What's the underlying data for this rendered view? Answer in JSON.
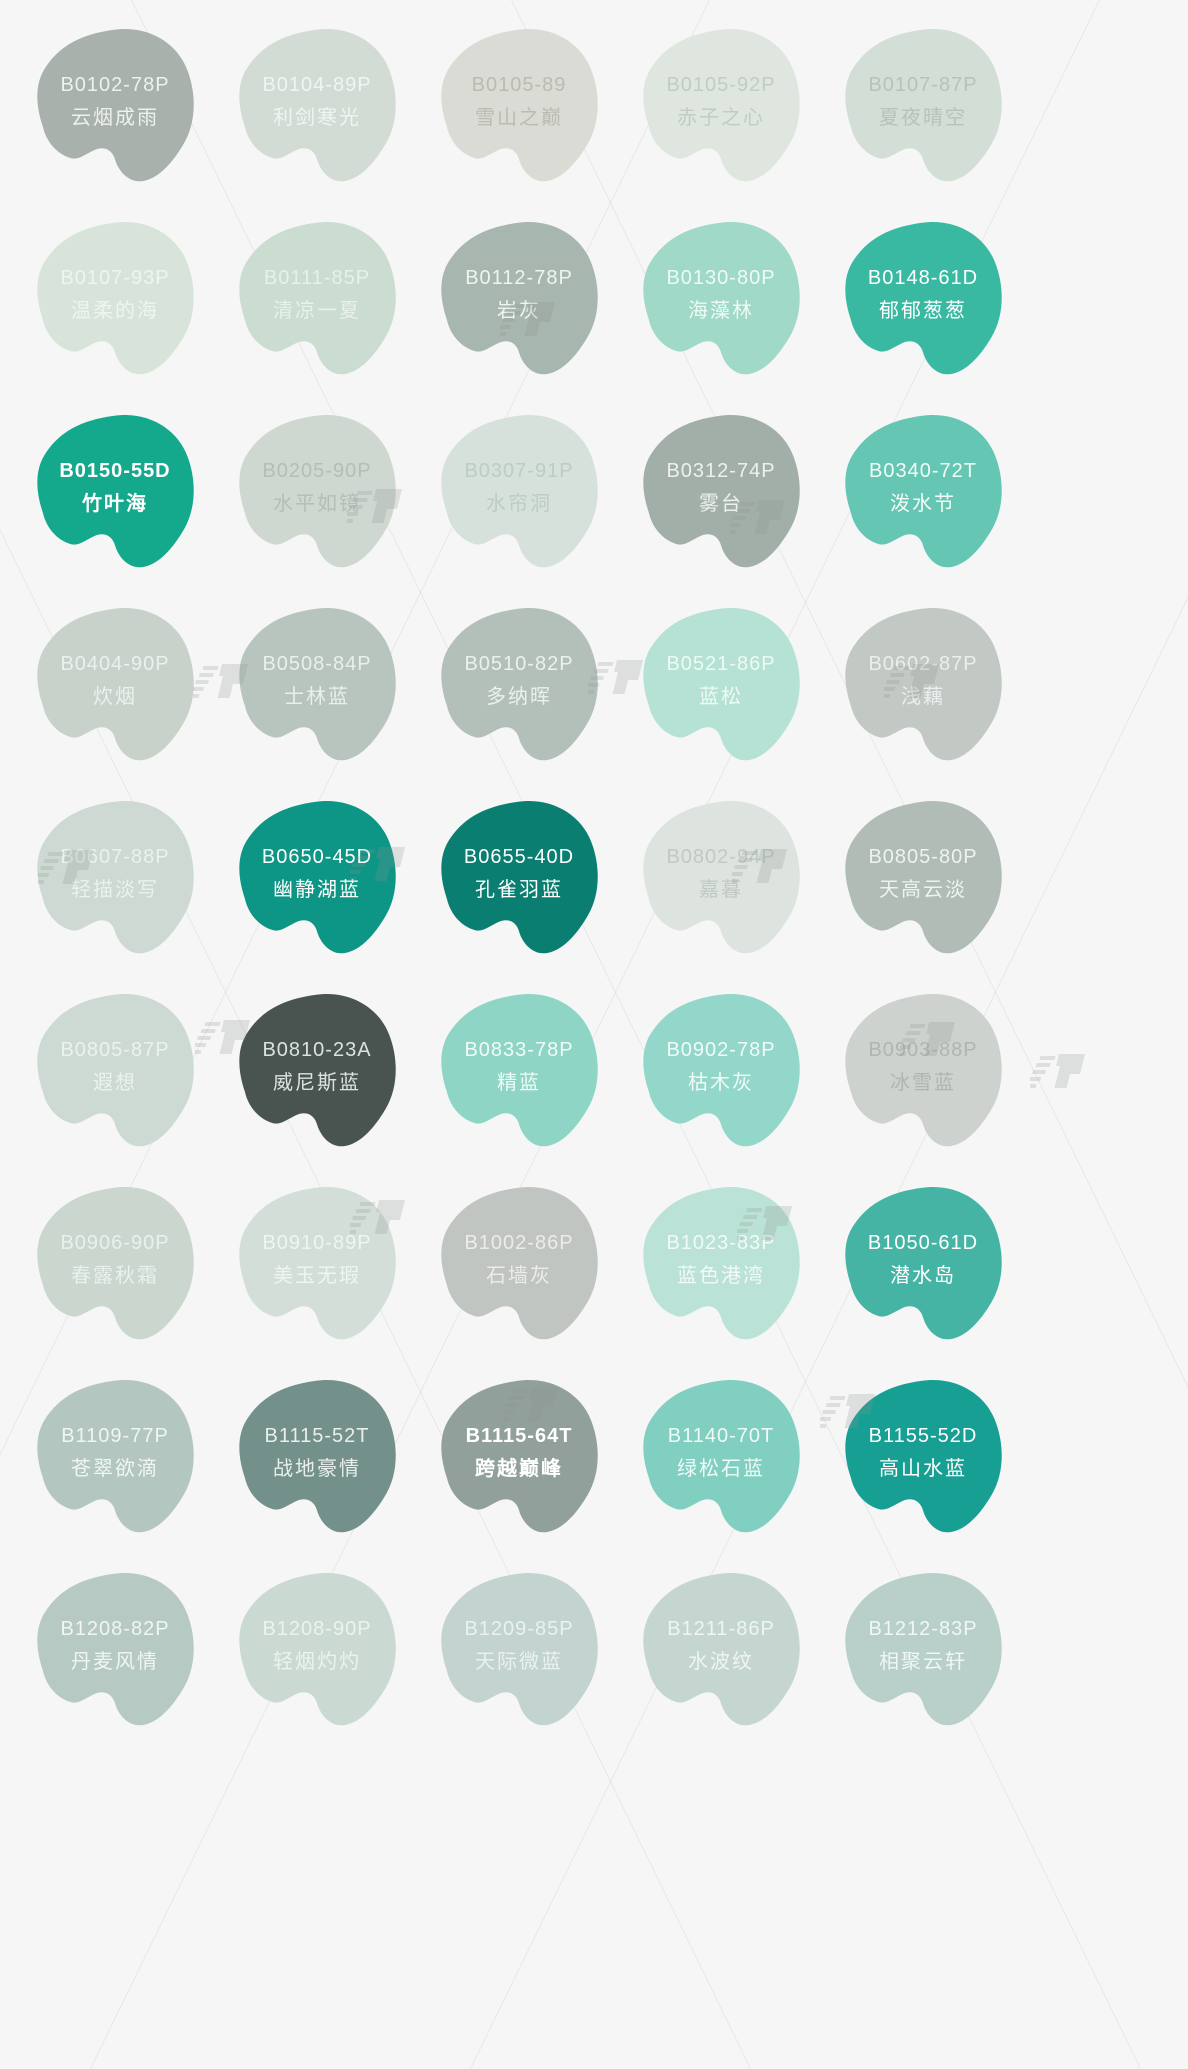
{
  "page": {
    "background": "#f5f6f5",
    "watermark_icon": "brand-watermark",
    "accent_teal": "#14a98c",
    "accent_dark": "#495450"
  },
  "swatches": [
    {
      "code": "B0102-78P",
      "name": "云烟成雨",
      "color": "#a8b1ac",
      "text_color": "#eef1ef",
      "bold": false
    },
    {
      "code": "B0104-89P",
      "name": "利剑寒光",
      "color": "#d3dbd5",
      "text_color": "#f0f5f1",
      "bold": false
    },
    {
      "code": "B0105-89",
      "name": "雪山之巅",
      "color": "#d9dbd4",
      "text_color": "#babcb4",
      "bold": false
    },
    {
      "code": "B0105-92P",
      "name": "赤子之心",
      "color": "#dee6df",
      "text_color": "#c2ccc3",
      "bold": false
    },
    {
      "code": "B0107-87P",
      "name": "夏夜晴空",
      "color": "#d2ded6",
      "text_color": "#b5c3ba",
      "bold": false
    },
    {
      "code": "B0107-93P",
      "name": "温柔的海",
      "color": "#d8e4da",
      "text_color": "#eef5f0",
      "bold": false
    },
    {
      "code": "B0111-85P",
      "name": "清凉一夏",
      "color": "#cbdcd1",
      "text_color": "#e7f1eb",
      "bold": false
    },
    {
      "code": "B0112-78P",
      "name": "岩灰",
      "color": "#a7b6af",
      "text_color": "#eff4f1",
      "bold": false
    },
    {
      "code": "B0130-80P",
      "name": "海藻林",
      "color": "#a0d9c8",
      "text_color": "#eefaf5",
      "bold": false
    },
    {
      "code": "B0148-61D",
      "name": "郁郁葱葱",
      "color": "#3ab9a2",
      "text_color": "#ffffff",
      "bold": false
    },
    {
      "code": "B0150-55D",
      "name": "竹叶海",
      "color": "#14a98c",
      "text_color": "#ffffff",
      "bold": true
    },
    {
      "code": "B0205-90P",
      "name": "水平如镜",
      "color": "#cfd7d1",
      "text_color": "#b4beb6",
      "bold": false
    },
    {
      "code": "B0307-91P",
      "name": "水帘洞",
      "color": "#d5e1da",
      "text_color": "#bccdc3",
      "bold": false
    },
    {
      "code": "B0312-74P",
      "name": "雾台",
      "color": "#a2afa8",
      "text_color": "#edf1ee",
      "bold": false
    },
    {
      "code": "B0340-72T",
      "name": "泼水节",
      "color": "#65c6b4",
      "text_color": "#f3fcf9",
      "bold": false
    },
    {
      "code": "B0404-90P",
      "name": "炊烟",
      "color": "#c8d2cb",
      "text_color": "#ebf1ec",
      "bold": false
    },
    {
      "code": "B0508-84P",
      "name": "士林蓝",
      "color": "#b7c5be",
      "text_color": "#e9f0ec",
      "bold": false
    },
    {
      "code": "B0510-82P",
      "name": "多纳晖",
      "color": "#b3c0b9",
      "text_color": "#ebf1ed",
      "bold": false
    },
    {
      "code": "B0521-86P",
      "name": "蓝松",
      "color": "#b6e1d5",
      "text_color": "#effaf5",
      "bold": false
    },
    {
      "code": "B0602-87P",
      "name": "浅藕",
      "color": "#c2c8c4",
      "text_color": "#ebeeec",
      "bold": false
    },
    {
      "code": "B0607-88P",
      "name": "轻描淡写",
      "color": "#cdd9d2",
      "text_color": "#eaf2ed",
      "bold": false
    },
    {
      "code": "B0650-45D",
      "name": "幽静湖蓝",
      "color": "#0d9585",
      "text_color": "#ffffff",
      "bold": false
    },
    {
      "code": "B0655-40D",
      "name": "孔雀羽蓝",
      "color": "#0a7e71",
      "text_color": "#ffffff",
      "bold": false
    },
    {
      "code": "B0802-94P",
      "name": "嘉暮",
      "color": "#dde3de",
      "text_color": "#c1c9c2",
      "bold": false
    },
    {
      "code": "B0805-80P",
      "name": "天高云淡",
      "color": "#b0bcb5",
      "text_color": "#eef3ef",
      "bold": false
    },
    {
      "code": "B0805-87P",
      "name": "遐想",
      "color": "#cdd9d3",
      "text_color": "#ecf3ee",
      "bold": false
    },
    {
      "code": "B0810-23A",
      "name": "威尼斯蓝",
      "color": "#495450",
      "text_color": "#dde2df",
      "bold": false
    },
    {
      "code": "B0833-78P",
      "name": "精蓝",
      "color": "#8fd5c6",
      "text_color": "#f1fbf7",
      "bold": false
    },
    {
      "code": "B0902-78P",
      "name": "枯木灰",
      "color": "#92d7c9",
      "text_color": "#f1fbf7",
      "bold": false
    },
    {
      "code": "B0903-88P",
      "name": "冰雪蓝",
      "color": "#cdd2cf",
      "text_color": "#aeb6b1",
      "bold": false
    },
    {
      "code": "B0906-90P",
      "name": "春露秋霜",
      "color": "#cbd6cf",
      "text_color": "#eaf1ec",
      "bold": false
    },
    {
      "code": "B0910-89P",
      "name": "美玉无瑕",
      "color": "#d2ded7",
      "text_color": "#eff5f1",
      "bold": false
    },
    {
      "code": "B1002-86P",
      "name": "石墙灰",
      "color": "#c0c5c1",
      "text_color": "#ebedeb",
      "bold": false
    },
    {
      "code": "B1023-83P",
      "name": "蓝色港湾",
      "color": "#bbe2d7",
      "text_color": "#f1faf6",
      "bold": false
    },
    {
      "code": "B1050-61D",
      "name": "潜水岛",
      "color": "#46b4a5",
      "text_color": "#ffffff",
      "bold": false
    },
    {
      "code": "B1109-77P",
      "name": "苍翠欲滴",
      "color": "#b4c6c0",
      "text_color": "#eff6f3",
      "bold": false
    },
    {
      "code": "B1115-52T",
      "name": "战地豪情",
      "color": "#74908a",
      "text_color": "#e8efed",
      "bold": false
    },
    {
      "code": "B1115-64T",
      "name": "跨越巅峰",
      "color": "#92a09b",
      "text_color": "#ffffff",
      "bold": true
    },
    {
      "code": "B1140-70T",
      "name": "绿松石蓝",
      "color": "#81cfc0",
      "text_color": "#f0faf6",
      "bold": false
    },
    {
      "code": "B1155-52D",
      "name": "高山水蓝",
      "color": "#179f94",
      "text_color": "#ffffff",
      "bold": false
    },
    {
      "code": "B1208-82P",
      "name": "丹麦风情",
      "color": "#b6c9c3",
      "text_color": "#f0f6f4",
      "bold": false
    },
    {
      "code": "B1208-90P",
      "name": "轻烟灼灼",
      "color": "#cbd9d3",
      "text_color": "#ebf3ef",
      "bold": false
    },
    {
      "code": "B1209-85P",
      "name": "天际微蓝",
      "color": "#c3d3cf",
      "text_color": "#eaf2f0",
      "bold": false
    },
    {
      "code": "B1211-86P",
      "name": "水波纹",
      "color": "#c5d6d1",
      "text_color": "#eef5f2",
      "bold": false
    },
    {
      "code": "B1212-83P",
      "name": "相聚云轩",
      "color": "#b9cfca",
      "text_color": "#f0f7f5",
      "bold": false
    }
  ]
}
